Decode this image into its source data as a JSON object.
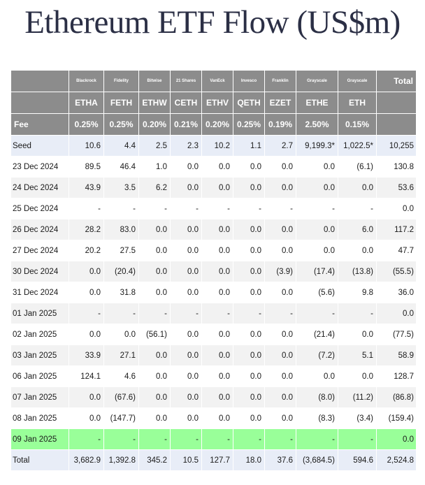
{
  "title": "Ethereum ETF Flow (US$m)",
  "colors": {
    "header_bg": "#8c8c8c",
    "negative": "#e01b1b",
    "highlight_row": "#99ff99",
    "seed_total_row": "#e8edf7"
  },
  "table": {
    "issuers": [
      "Blackrock",
      "Fidelity",
      "Bitwise",
      "21 Shares",
      "VanEck",
      "Invesco",
      "Franklin",
      "Grayscale",
      "Grayscale"
    ],
    "total_label": "Total",
    "tickers": [
      "ETHA",
      "FETH",
      "ETHW",
      "CETH",
      "ETHV",
      "QETH",
      "EZET",
      "ETHE",
      "ETH"
    ],
    "fee_label": "Fee",
    "fees": [
      "0.25%",
      "0.25%",
      "0.20%",
      "0.21%",
      "0.20%",
      "0.25%",
      "0.19%",
      "2.50%",
      "0.15%"
    ],
    "rows": [
      {
        "label": "Seed",
        "values": [
          "10.6",
          "4.4",
          "2.5",
          "2.3",
          "10.2",
          "1.1",
          "2.7",
          "9,199.3*",
          "1,022.5*"
        ],
        "total": "10,255"
      },
      {
        "label": "23 Dec 2024",
        "values": [
          "89.5",
          "46.4",
          "1.0",
          "0.0",
          "0.0",
          "0.0",
          "0.0",
          "0.0",
          "(6.1)"
        ],
        "total": "130.8"
      },
      {
        "label": "24 Dec 2024",
        "values": [
          "43.9",
          "3.5",
          "6.2",
          "0.0",
          "0.0",
          "0.0",
          "0.0",
          "0.0",
          "0.0"
        ],
        "total": "53.6"
      },
      {
        "label": "25 Dec 2024",
        "values": [
          "-",
          "-",
          "-",
          "-",
          "-",
          "-",
          "-",
          "-",
          "-"
        ],
        "total": "0.0"
      },
      {
        "label": "26 Dec 2024",
        "values": [
          "28.2",
          "83.0",
          "0.0",
          "0.0",
          "0.0",
          "0.0",
          "0.0",
          "0.0",
          "6.0"
        ],
        "total": "117.2"
      },
      {
        "label": "27 Dec 2024",
        "values": [
          "20.2",
          "27.5",
          "0.0",
          "0.0",
          "0.0",
          "0.0",
          "0.0",
          "0.0",
          "0.0"
        ],
        "total": "47.7"
      },
      {
        "label": "30 Dec 2024",
        "values": [
          "0.0",
          "(20.4)",
          "0.0",
          "0.0",
          "0.0",
          "0.0",
          "(3.9)",
          "(17.4)",
          "(13.8)"
        ],
        "total": "(55.5)"
      },
      {
        "label": "31 Dec 2024",
        "values": [
          "0.0",
          "31.8",
          "0.0",
          "0.0",
          "0.0",
          "0.0",
          "0.0",
          "(5.6)",
          "9.8"
        ],
        "total": "36.0"
      },
      {
        "label": "01 Jan 2025",
        "values": [
          "-",
          "-",
          "-",
          "-",
          "-",
          "-",
          "-",
          "-",
          "-"
        ],
        "total": "0.0"
      },
      {
        "label": "02 Jan 2025",
        "values": [
          "0.0",
          "0.0",
          "(56.1)",
          "0.0",
          "0.0",
          "0.0",
          "0.0",
          "(21.4)",
          "0.0"
        ],
        "total": "(77.5)"
      },
      {
        "label": "03 Jan 2025",
        "values": [
          "33.9",
          "27.1",
          "0.0",
          "0.0",
          "0.0",
          "0.0",
          "0.0",
          "(7.2)",
          "5.1"
        ],
        "total": "58.9"
      },
      {
        "label": "06 Jan 2025",
        "values": [
          "124.1",
          "4.6",
          "0.0",
          "0.0",
          "0.0",
          "0.0",
          "0.0",
          "0.0",
          "0.0"
        ],
        "total": "128.7"
      },
      {
        "label": "07 Jan 2025",
        "values": [
          "0.0",
          "(67.6)",
          "0.0",
          "0.0",
          "0.0",
          "0.0",
          "0.0",
          "(8.0)",
          "(11.2)"
        ],
        "total": "(86.8)"
      },
      {
        "label": "08 Jan 2025",
        "values": [
          "0.0",
          "(147.7)",
          "0.0",
          "0.0",
          "0.0",
          "0.0",
          "0.0",
          "(8.3)",
          "(3.4)"
        ],
        "total": "(159.4)"
      },
      {
        "label": "09 Jan 2025",
        "values": [
          "-",
          "-",
          "-",
          "-",
          "-",
          "-",
          "-",
          "-",
          "-"
        ],
        "total": "0.0",
        "highlight": true
      },
      {
        "label": "Total",
        "values": [
          "3,682.9",
          "1,392.8",
          "345.2",
          "10.5",
          "127.7",
          "18.0",
          "37.6",
          "(3,684.5)",
          "594.6"
        ],
        "total": "2,524.8"
      }
    ]
  },
  "chart_data": {
    "type": "table",
    "title": "Ethereum ETF Flow (US$m)",
    "columns": [
      "ETHA",
      "FETH",
      "ETHW",
      "CETH",
      "ETHV",
      "QETH",
      "EZET",
      "ETHE",
      "ETH",
      "Total"
    ],
    "issuers": [
      "Blackrock",
      "Fidelity",
      "Bitwise",
      "21 Shares",
      "VanEck",
      "Invesco",
      "Franklin",
      "Grayscale",
      "Grayscale"
    ],
    "fees": [
      "0.25%",
      "0.25%",
      "0.20%",
      "0.21%",
      "0.20%",
      "0.25%",
      "0.19%",
      "2.50%",
      "0.15%"
    ],
    "row_labels": [
      "Seed",
      "23 Dec 2024",
      "24 Dec 2024",
      "25 Dec 2024",
      "26 Dec 2024",
      "27 Dec 2024",
      "30 Dec 2024",
      "31 Dec 2024",
      "01 Jan 2025",
      "02 Jan 2025",
      "03 Jan 2025",
      "06 Jan 2025",
      "07 Jan 2025",
      "08 Jan 2025",
      "09 Jan 2025",
      "Total"
    ],
    "values": [
      [
        10.6,
        4.4,
        2.5,
        2.3,
        10.2,
        1.1,
        2.7,
        9199.3,
        1022.5,
        10255
      ],
      [
        89.5,
        46.4,
        1.0,
        0.0,
        0.0,
        0.0,
        0.0,
        0.0,
        -6.1,
        130.8
      ],
      [
        43.9,
        3.5,
        6.2,
        0.0,
        0.0,
        0.0,
        0.0,
        0.0,
        0.0,
        53.6
      ],
      [
        null,
        null,
        null,
        null,
        null,
        null,
        null,
        null,
        null,
        0.0
      ],
      [
        28.2,
        83.0,
        0.0,
        0.0,
        0.0,
        0.0,
        0.0,
        0.0,
        6.0,
        117.2
      ],
      [
        20.2,
        27.5,
        0.0,
        0.0,
        0.0,
        0.0,
        0.0,
        0.0,
        0.0,
        47.7
      ],
      [
        0.0,
        -20.4,
        0.0,
        0.0,
        0.0,
        0.0,
        -3.9,
        -17.4,
        -13.8,
        -55.5
      ],
      [
        0.0,
        31.8,
        0.0,
        0.0,
        0.0,
        0.0,
        0.0,
        -5.6,
        9.8,
        36.0
      ],
      [
        null,
        null,
        null,
        null,
        null,
        null,
        null,
        null,
        null,
        0.0
      ],
      [
        0.0,
        0.0,
        -56.1,
        0.0,
        0.0,
        0.0,
        0.0,
        -21.4,
        0.0,
        -77.5
      ],
      [
        33.9,
        27.1,
        0.0,
        0.0,
        0.0,
        0.0,
        0.0,
        -7.2,
        5.1,
        58.9
      ],
      [
        124.1,
        4.6,
        0.0,
        0.0,
        0.0,
        0.0,
        0.0,
        0.0,
        0.0,
        128.7
      ],
      [
        0.0,
        -67.6,
        0.0,
        0.0,
        0.0,
        0.0,
        0.0,
        -8.0,
        -11.2,
        -86.8
      ],
      [
        0.0,
        -147.7,
        0.0,
        0.0,
        0.0,
        0.0,
        0.0,
        -8.3,
        -3.4,
        -159.4
      ],
      [
        null,
        null,
        null,
        null,
        null,
        null,
        null,
        null,
        null,
        0.0
      ],
      [
        3682.9,
        1392.8,
        345.2,
        10.5,
        127.7,
        18.0,
        37.6,
        -3684.5,
        594.6,
        2524.8
      ]
    ]
  }
}
